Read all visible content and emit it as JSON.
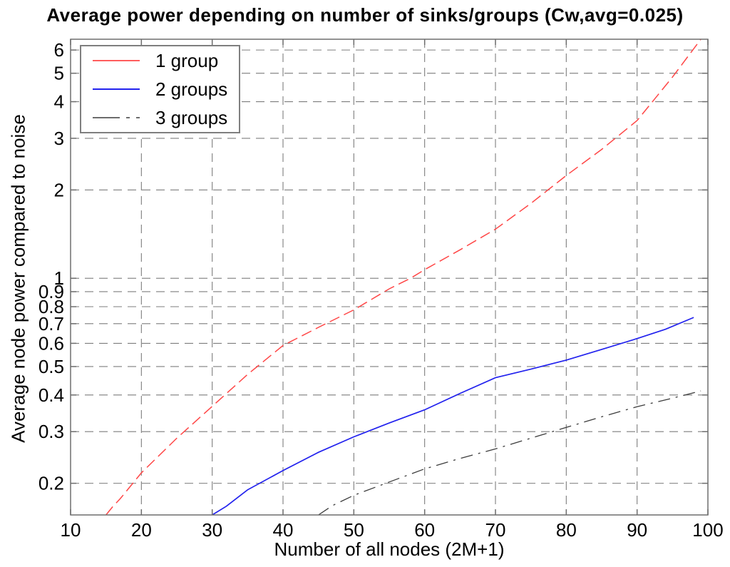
{
  "chart_data": {
    "type": "line",
    "title": "Average power depending on number of sinks/groups (Cw,avg=0.025)",
    "xlabel": "Number of all nodes (2M+1)",
    "ylabel": "Average node power compared to noise",
    "xlim": [
      10,
      100
    ],
    "ylim": [
      0.156,
      6.53
    ],
    "yscale": "log",
    "xticks": [
      10,
      20,
      30,
      40,
      50,
      60,
      70,
      80,
      90,
      100
    ],
    "yticks": [
      0.2,
      0.3,
      0.4,
      0.5,
      0.6,
      0.7,
      0.8,
      0.9,
      1,
      2,
      3,
      4,
      5,
      6
    ],
    "grid": true,
    "legend_position": "top-left",
    "colors": {
      "grid": "#7d7d7d",
      "frame": "#6e6e6e",
      "background": "#ffffff",
      "text": "#000000"
    },
    "series": [
      {
        "name": "1 group",
        "color": "#ff4646",
        "style": "dashed",
        "width": 1.5,
        "points": [
          [
            15,
            0.156
          ],
          [
            16,
            0.167
          ],
          [
            17,
            0.177
          ],
          [
            20,
            0.217
          ],
          [
            25,
            0.285
          ],
          [
            30,
            0.366
          ],
          [
            35,
            0.47
          ],
          [
            40,
            0.59
          ],
          [
            45,
            0.68
          ],
          [
            50,
            0.78
          ],
          [
            55,
            0.92
          ],
          [
            58,
            1.0
          ],
          [
            60,
            1.07
          ],
          [
            65,
            1.25
          ],
          [
            70,
            1.47
          ],
          [
            75,
            1.8
          ],
          [
            80,
            2.24
          ],
          [
            85,
            2.75
          ],
          [
            90,
            3.45
          ],
          [
            95,
            4.85
          ],
          [
            99,
            6.53
          ]
        ]
      },
      {
        "name": "2 groups",
        "color": "#2222ee",
        "style": "solid",
        "width": 1.7,
        "points": [
          [
            30,
            0.156
          ],
          [
            32,
            0.167
          ],
          [
            35,
            0.19
          ],
          [
            40,
            0.221
          ],
          [
            45,
            0.255
          ],
          [
            50,
            0.288
          ],
          [
            55,
            0.321
          ],
          [
            60,
            0.356
          ],
          [
            65,
            0.405
          ],
          [
            70,
            0.458
          ],
          [
            75,
            0.49
          ],
          [
            80,
            0.526
          ],
          [
            85,
            0.572
          ],
          [
            90,
            0.623
          ],
          [
            94,
            0.67
          ],
          [
            98,
            0.735
          ]
        ]
      },
      {
        "name": "3 groups",
        "color": "#3c3c3c",
        "style": "dashdot",
        "width": 1.3,
        "points": [
          [
            45,
            0.156
          ],
          [
            47,
            0.168
          ],
          [
            50,
            0.182
          ],
          [
            55,
            0.202
          ],
          [
            60,
            0.224
          ],
          [
            65,
            0.243
          ],
          [
            70,
            0.262
          ],
          [
            75,
            0.285
          ],
          [
            80,
            0.31
          ],
          [
            85,
            0.337
          ],
          [
            90,
            0.365
          ],
          [
            95,
            0.39
          ],
          [
            99,
            0.413
          ]
        ]
      }
    ]
  }
}
